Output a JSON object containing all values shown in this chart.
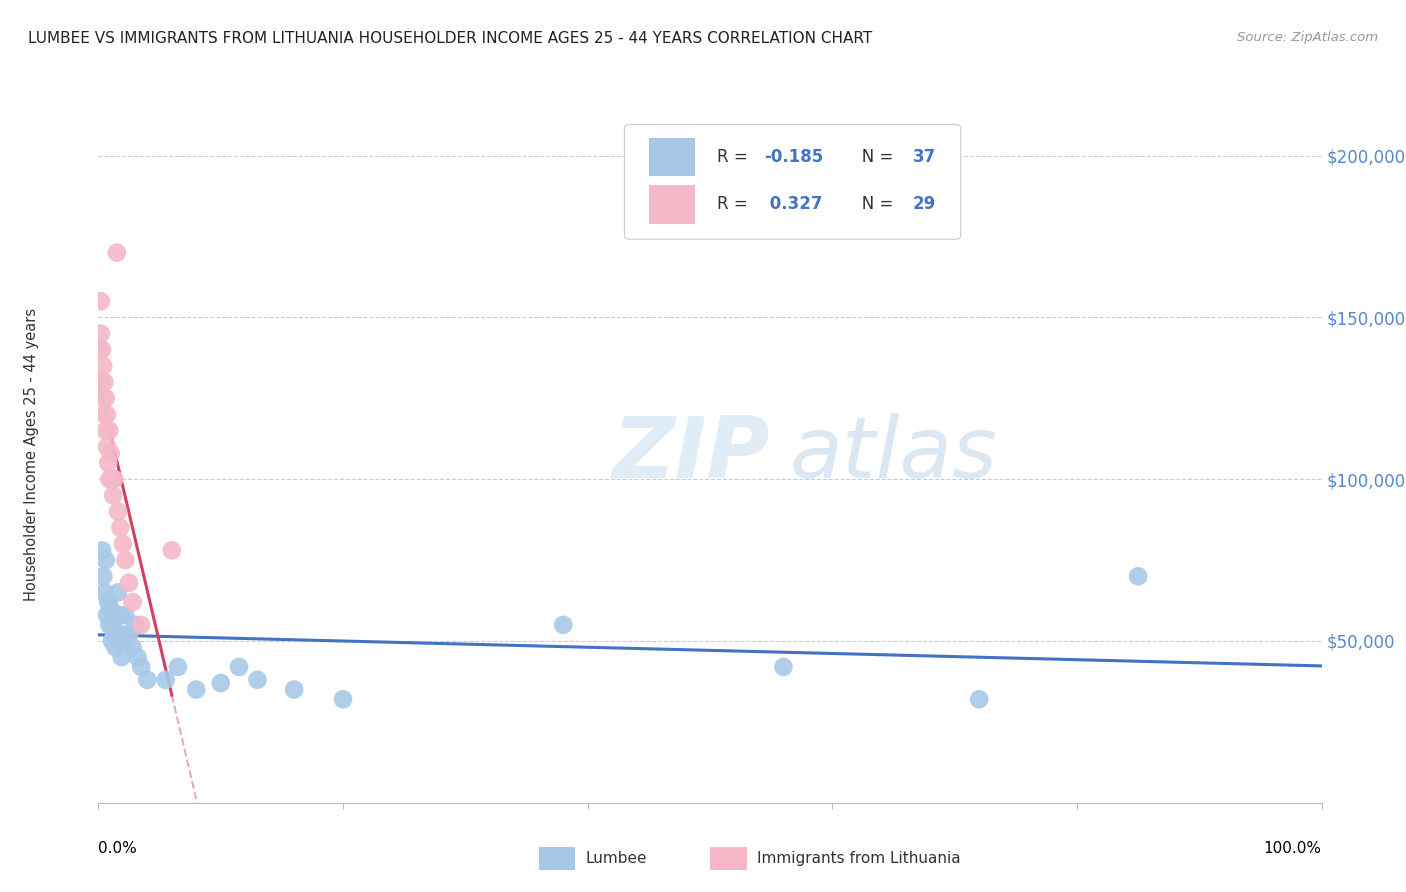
{
  "title": "LUMBEE VS IMMIGRANTS FROM LITHUANIA HOUSEHOLDER INCOME AGES 25 - 44 YEARS CORRELATION CHART",
  "source": "Source: ZipAtlas.com",
  "ylabel": "Householder Income Ages 25 - 44 years",
  "ytick_labels": [
    "$50,000",
    "$100,000",
    "$150,000",
    "$200,000"
  ],
  "ytick_values": [
    50000,
    100000,
    150000,
    200000
  ],
  "ymin": 0,
  "ymax": 215000,
  "xmin": 0.0,
  "xmax": 1.0,
  "lumbee_R": "-0.185",
  "lumbee_N": "37",
  "lithuania_R": "0.327",
  "lithuania_N": "29",
  "lumbee_color": "#a8c8e8",
  "lithuania_color": "#f5b8c8",
  "lumbee_line_color": "#4472c4",
  "lithuania_line_color": "#d04060",
  "legend_label_lumbee": "Lumbee",
  "legend_label_lithuania": "Immigrants from Lithuania",
  "watermark_zip": "ZIP",
  "watermark_atlas": "atlas",
  "lumbee_x": [
    0.003,
    0.004,
    0.005,
    0.006,
    0.007,
    0.008,
    0.009,
    0.01,
    0.011,
    0.012,
    0.013,
    0.014,
    0.016,
    0.017,
    0.018,
    0.019,
    0.02,
    0.022,
    0.023,
    0.025,
    0.028,
    0.03,
    0.032,
    0.035,
    0.04,
    0.055,
    0.065,
    0.08,
    0.1,
    0.115,
    0.13,
    0.16,
    0.2,
    0.38,
    0.56,
    0.72,
    0.85
  ],
  "lumbee_y": [
    78000,
    70000,
    65000,
    75000,
    58000,
    62000,
    55000,
    60000,
    50000,
    55000,
    52000,
    48000,
    65000,
    50000,
    58000,
    45000,
    52000,
    58000,
    50000,
    52000,
    48000,
    55000,
    45000,
    42000,
    38000,
    38000,
    42000,
    35000,
    37000,
    42000,
    38000,
    35000,
    32000,
    55000,
    42000,
    32000,
    70000
  ],
  "lithuania_x": [
    0.001,
    0.002,
    0.002,
    0.003,
    0.003,
    0.004,
    0.004,
    0.005,
    0.005,
    0.006,
    0.006,
    0.007,
    0.007,
    0.008,
    0.009,
    0.009,
    0.01,
    0.011,
    0.012,
    0.013,
    0.015,
    0.016,
    0.018,
    0.02,
    0.022,
    0.025,
    0.028,
    0.035,
    0.06
  ],
  "lithuania_y": [
    140000,
    145000,
    155000,
    130000,
    140000,
    125000,
    135000,
    120000,
    130000,
    115000,
    125000,
    110000,
    120000,
    105000,
    115000,
    100000,
    108000,
    100000,
    95000,
    100000,
    170000,
    90000,
    85000,
    80000,
    75000,
    68000,
    62000,
    55000,
    78000
  ]
}
